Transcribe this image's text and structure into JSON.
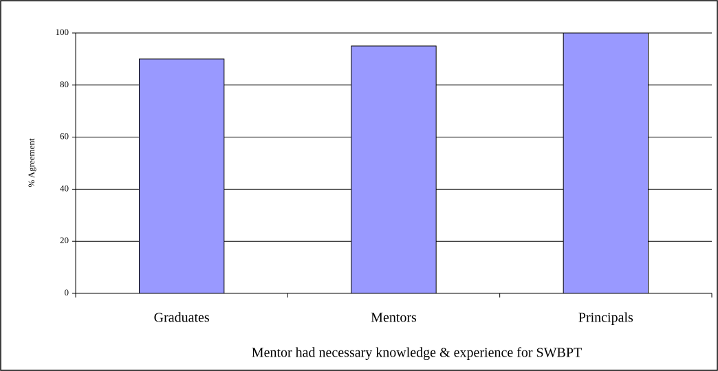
{
  "chart_data": {
    "type": "bar",
    "categories": [
      "Graduates",
      "Mentors",
      "Principals"
    ],
    "values": [
      90,
      95,
      100
    ],
    "color": "#9999ff",
    "xlabel": "Mentor had necessary knowledge & experience for SWBPT",
    "ylabel": "% Agreement",
    "ylim": [
      0,
      100
    ],
    "yticks": [
      0,
      20,
      40,
      60,
      80,
      100
    ],
    "grid": true
  }
}
